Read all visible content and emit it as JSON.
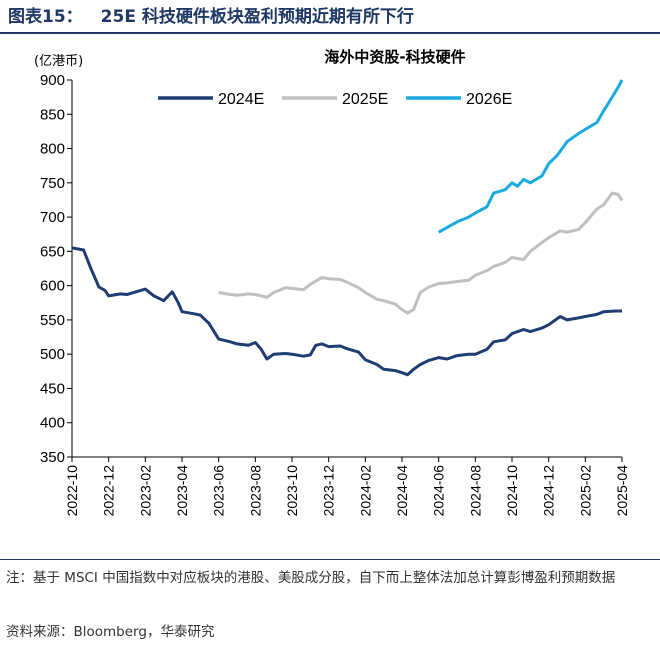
{
  "header": {
    "figure_label": "图表15：",
    "title": "25E 科技硬件板块盈利预期近期有所下行"
  },
  "note_text": "注：基于 MSCI 中国指数中对应板块的港股、美股成分股，自下而上整体法加总计算彭博盈利预期数据",
  "source_text": "资料来源：Bloomberg，华泰研究",
  "chart_data": {
    "type": "line",
    "title": "海外中资股-科技硬件",
    "ylabel": "(亿港币)",
    "ylim": [
      350,
      900
    ],
    "yticks": [
      350,
      400,
      450,
      500,
      550,
      600,
      650,
      700,
      750,
      800,
      850,
      900
    ],
    "xticks": [
      "2022-10",
      "2022-12",
      "2023-02",
      "2023-04",
      "2023-06",
      "2023-08",
      "2023-10",
      "2023-12",
      "2024-02",
      "2024-04",
      "2024-06",
      "2024-08",
      "2024-10",
      "2024-12",
      "2025-02",
      "2025-04"
    ],
    "x_range": [
      "2022-10",
      "2025-04"
    ],
    "legend_position": "top-center",
    "grid": false,
    "series": [
      {
        "name": "2024E",
        "color": "#1f3c73",
        "points": [
          [
            "2022-10",
            655
          ],
          [
            "2022-10-20",
            652
          ],
          [
            "2022-11",
            627
          ],
          [
            "2022-11-15",
            598
          ],
          [
            "2022-11-25",
            593
          ],
          [
            "2022-12",
            585
          ],
          [
            "2022-12-20",
            588
          ],
          [
            "2023-01",
            587
          ],
          [
            "2023-01-20",
            592
          ],
          [
            "2023-02",
            595
          ],
          [
            "2023-02-15",
            585
          ],
          [
            "2023-03",
            578
          ],
          [
            "2023-03-15",
            591
          ],
          [
            "2023-03-25",
            575
          ],
          [
            "2023-04",
            562
          ],
          [
            "2023-04-20",
            559
          ],
          [
            "2023-05",
            557
          ],
          [
            "2023-05-15",
            545
          ],
          [
            "2023-06",
            522
          ],
          [
            "2023-06-20",
            518
          ],
          [
            "2023-07",
            515
          ],
          [
            "2023-07-20",
            513
          ],
          [
            "2023-08",
            517
          ],
          [
            "2023-08-10",
            508
          ],
          [
            "2023-08-20",
            493
          ],
          [
            "2023-09",
            500
          ],
          [
            "2023-09-20",
            501
          ],
          [
            "2023-10",
            500
          ],
          [
            "2023-10-20",
            497
          ],
          [
            "2023-11",
            499
          ],
          [
            "2023-11-10",
            513
          ],
          [
            "2023-11-20",
            515
          ],
          [
            "2023-12",
            511
          ],
          [
            "2023-12-20",
            512
          ],
          [
            "2024-01",
            508
          ],
          [
            "2024-01-20",
            503
          ],
          [
            "2024-02",
            492
          ],
          [
            "2024-02-20",
            485
          ],
          [
            "2024-03",
            478
          ],
          [
            "2024-03-20",
            476
          ],
          [
            "2024-04",
            473
          ],
          [
            "2024-04-10",
            470
          ],
          [
            "2024-04-20",
            478
          ],
          [
            "2024-05",
            485
          ],
          [
            "2024-05-15",
            491
          ],
          [
            "2024-06",
            495
          ],
          [
            "2024-06-15",
            493
          ],
          [
            "2024-07",
            498
          ],
          [
            "2024-07-20",
            500
          ],
          [
            "2024-08",
            500
          ],
          [
            "2024-08-20",
            507
          ],
          [
            "2024-09",
            518
          ],
          [
            "2024-09-20",
            521
          ],
          [
            "2024-10",
            530
          ],
          [
            "2024-10-20",
            536
          ],
          [
            "2024-11",
            533
          ],
          [
            "2024-11-20",
            538
          ],
          [
            "2024-12",
            543
          ],
          [
            "2024-12-20",
            555
          ],
          [
            "2025-01",
            550
          ],
          [
            "2025-01-20",
            553
          ],
          [
            "2025-02",
            555
          ],
          [
            "2025-02-20",
            558
          ],
          [
            "2025-03",
            562
          ],
          [
            "2025-03-20",
            563
          ],
          [
            "2025-04",
            563
          ]
        ]
      },
      {
        "name": "2025E",
        "color": "#c0c0c0",
        "points": [
          [
            "2023-06",
            590
          ],
          [
            "2023-06-20",
            587
          ],
          [
            "2023-07",
            586
          ],
          [
            "2023-07-20",
            588
          ],
          [
            "2023-08",
            587
          ],
          [
            "2023-08-20",
            583
          ],
          [
            "2023-09",
            590
          ],
          [
            "2023-09-20",
            597
          ],
          [
            "2023-10",
            596
          ],
          [
            "2023-10-20",
            594
          ],
          [
            "2023-11",
            602
          ],
          [
            "2023-11-20",
            612
          ],
          [
            "2023-12",
            610
          ],
          [
            "2023-12-20",
            609
          ],
          [
            "2024-01",
            605
          ],
          [
            "2024-01-20",
            597
          ],
          [
            "2024-02",
            590
          ],
          [
            "2024-02-20",
            580
          ],
          [
            "2024-03",
            578
          ],
          [
            "2024-03-20",
            573
          ],
          [
            "2024-04",
            565
          ],
          [
            "2024-04-10",
            560
          ],
          [
            "2024-04-20",
            565
          ],
          [
            "2024-05",
            590
          ],
          [
            "2024-05-15",
            598
          ],
          [
            "2024-06",
            603
          ],
          [
            "2024-06-15",
            604
          ],
          [
            "2024-07",
            606
          ],
          [
            "2024-07-20",
            608
          ],
          [
            "2024-08",
            615
          ],
          [
            "2024-08-20",
            622
          ],
          [
            "2024-09",
            628
          ],
          [
            "2024-09-20",
            634
          ],
          [
            "2024-10",
            641
          ],
          [
            "2024-10-20",
            638
          ],
          [
            "2024-11",
            650
          ],
          [
            "2024-11-20",
            663
          ],
          [
            "2024-12",
            670
          ],
          [
            "2024-12-20",
            680
          ],
          [
            "2025-01",
            678
          ],
          [
            "2025-01-20",
            682
          ],
          [
            "2025-02",
            692
          ],
          [
            "2025-02-20",
            712
          ],
          [
            "2025-03",
            718
          ],
          [
            "2025-03-15",
            735
          ],
          [
            "2025-03-25",
            733
          ],
          [
            "2025-04",
            724
          ]
        ]
      },
      {
        "name": "2026E",
        "color": "#1ba9e1",
        "points": [
          [
            "2024-06",
            678
          ],
          [
            "2024-06-15",
            685
          ],
          [
            "2024-07",
            693
          ],
          [
            "2024-07-20",
            700
          ],
          [
            "2024-08",
            706
          ],
          [
            "2024-08-20",
            715
          ],
          [
            "2024-09",
            735
          ],
          [
            "2024-09-20",
            740
          ],
          [
            "2024-10",
            750
          ],
          [
            "2024-10-10",
            745
          ],
          [
            "2024-10-20",
            755
          ],
          [
            "2024-11",
            750
          ],
          [
            "2024-11-20",
            760
          ],
          [
            "2024-12",
            778
          ],
          [
            "2024-12-15",
            790
          ],
          [
            "2025-01",
            810
          ],
          [
            "2025-01-20",
            822
          ],
          [
            "2025-02",
            828
          ],
          [
            "2025-02-20",
            838
          ],
          [
            "2025-03",
            855
          ],
          [
            "2025-03-15",
            875
          ],
          [
            "2025-03-25",
            890
          ],
          [
            "2025-04",
            900
          ]
        ]
      }
    ]
  }
}
